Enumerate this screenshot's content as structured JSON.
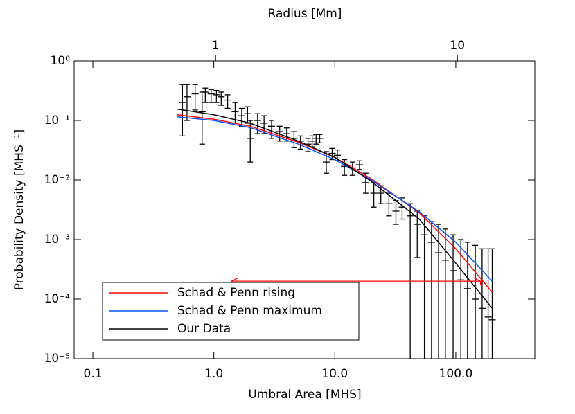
{
  "chart_data": {
    "type": "scatter",
    "xlabel": "Umbral Area [MHS]",
    "ylabel": "Probability Density [MHS⁻¹]",
    "x2label": "Radius [Mm]",
    "xscale": "log",
    "yscale": "log",
    "x2scale": "log",
    "xlim": [
      0.07,
      450
    ],
    "ylim": [
      1e-05,
      1
    ],
    "x2lim": [
      0.26,
      20.9
    ],
    "xticks": [
      0.1,
      {
        "value": 1,
        "label": "1.0"
      },
      {
        "value": 10,
        "label": "10.0"
      },
      {
        "value": 100,
        "label": "100.0"
      }
    ],
    "x2ticks": [
      1,
      10
    ],
    "yticks": [
      {
        "value": 1e-05,
        "label": "10⁻⁵"
      },
      {
        "value": 0.0001,
        "label": "10⁻⁴"
      },
      {
        "value": 0.001,
        "label": "10⁻³"
      },
      {
        "value": 0.01,
        "label": "10⁻²"
      },
      {
        "value": 0.1,
        "label": "10⁻¹"
      },
      {
        "value": 1,
        "label": "10⁰"
      }
    ],
    "legend": "lower-left",
    "points": {
      "color": "#000000",
      "x": [
        0.55,
        0.6,
        0.7,
        0.8,
        0.85,
        0.95,
        1.05,
        1.15,
        1.3,
        1.5,
        1.7,
        1.9,
        2.0,
        2.3,
        2.6,
        3.0,
        3.5,
        4.0,
        4.6,
        5.2,
        6.0,
        6.5,
        7.0,
        7.5,
        8.5,
        9.5,
        10.5,
        12,
        14,
        16,
        18,
        21,
        24,
        28,
        32,
        36,
        42,
        48,
        55,
        63,
        72,
        82,
        95,
        110,
        125,
        145,
        165,
        185,
        200
      ],
      "y": [
        0.2,
        0.25,
        0.28,
        0.14,
        0.3,
        0.28,
        0.27,
        0.25,
        0.22,
        0.14,
        0.12,
        0.13,
        0.05,
        0.1,
        0.09,
        0.08,
        0.065,
        0.06,
        0.05,
        0.045,
        0.04,
        0.045,
        0.05,
        0.05,
        0.02,
        0.028,
        0.026,
        0.017,
        0.016,
        0.018,
        0.009,
        0.006,
        0.006,
        0.004,
        0.003,
        0.0035,
        0.0025,
        0.0018,
        0.0012,
        0.0009,
        0.0006,
        0.00045,
        0.0003,
        0.00021,
        0.00015,
        0.0001,
        7e-05,
        5e-05,
        4.5e-05
      ],
      "y_low": [
        0.055,
        0.1,
        0.15,
        0.04,
        0.2,
        0.2,
        0.2,
        0.18,
        0.16,
        0.09,
        0.08,
        0.09,
        0.02,
        0.06,
        0.06,
        0.05,
        0.045,
        0.045,
        0.035,
        0.033,
        0.03,
        0.036,
        0.04,
        0.042,
        0.013,
        0.022,
        0.021,
        0.012,
        0.012,
        0.015,
        0.006,
        0.0035,
        0.004,
        0.0025,
        0.0018,
        0.0022,
        1e-06,
        0.0005,
        1e-06,
        1e-06,
        1e-06,
        1e-06,
        1e-06,
        1e-06,
        1e-06,
        1e-06,
        1e-06,
        1e-06,
        1e-06
      ],
      "y_high": [
        0.4,
        0.4,
        0.4,
        0.3,
        0.35,
        0.33,
        0.32,
        0.3,
        0.27,
        0.2,
        0.16,
        0.17,
        0.1,
        0.13,
        0.12,
        0.1,
        0.08,
        0.075,
        0.065,
        0.055,
        0.05,
        0.055,
        0.058,
        0.058,
        0.03,
        0.034,
        0.032,
        0.022,
        0.02,
        0.021,
        0.013,
        0.009,
        0.008,
        0.006,
        0.0045,
        0.005,
        0.004,
        0.003,
        0.0025,
        0.002,
        0.0018,
        0.0015,
        0.0012,
        0.001,
        0.0009,
        0.0008,
        0.0007,
        0.0007,
        0.0007
      ]
    },
    "x": [
      0.5,
      1,
      2,
      5,
      10,
      20,
      50,
      100,
      200
    ],
    "series": [
      {
        "name": "Schad & Penn rising",
        "color": "#ff0000",
        "values": [
          0.125,
          0.105,
          0.08,
          0.043,
          0.024,
          0.0105,
          0.0028,
          0.0007,
          0.00013
        ]
      },
      {
        "name": "Schad & Penn maximum",
        "color": "#0050ff",
        "values": [
          0.115,
          0.1,
          0.076,
          0.04,
          0.022,
          0.01,
          0.0029,
          0.0009,
          0.0002
        ]
      },
      {
        "name": "Our Data",
        "color": "#000000",
        "values": [
          0.155,
          0.125,
          0.09,
          0.045,
          0.024,
          0.0095,
          0.0022,
          0.0004,
          7e-05
        ]
      }
    ],
    "arrow": {
      "x": [
        1.4,
        160
      ],
      "y": 0.0002,
      "color": "#ff0000"
    }
  }
}
